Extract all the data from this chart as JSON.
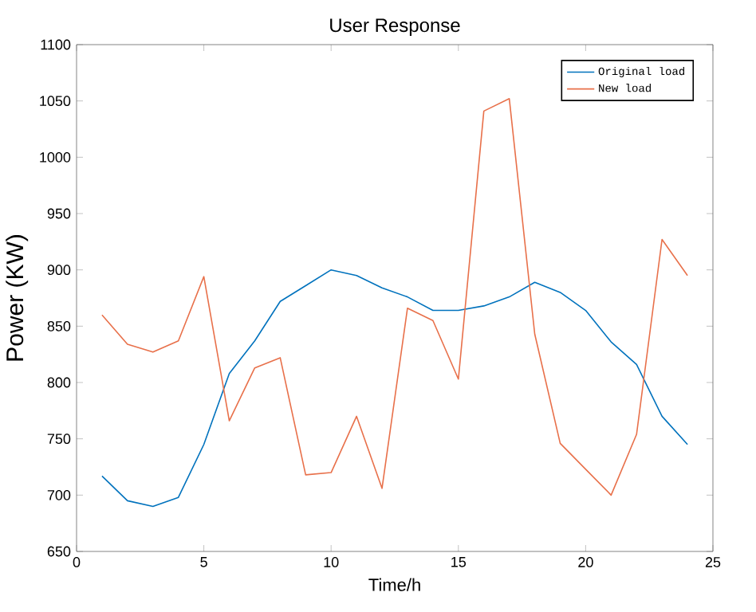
{
  "chart_data": {
    "type": "line",
    "title": "User Response",
    "xlabel": "Time/h",
    "ylabel": "Power (KW)",
    "x": [
      1,
      2,
      3,
      4,
      5,
      6,
      7,
      8,
      9,
      10,
      11,
      12,
      13,
      14,
      15,
      16,
      17,
      18,
      19,
      20,
      21,
      22,
      23,
      24
    ],
    "series": [
      {
        "name": "Original load",
        "color": "#0072bd",
        "values": [
          717,
          695,
          690,
          698,
          745,
          808,
          837,
          872,
          886,
          900,
          895,
          884,
          876,
          864,
          864,
          868,
          876,
          889,
          880,
          864,
          836,
          816,
          770,
          745
        ]
      },
      {
        "name": "New load",
        "color": "#e8704a",
        "values": [
          860,
          834,
          827,
          837,
          894,
          766,
          813,
          822,
          718,
          720,
          770,
          706,
          866,
          855,
          803,
          1041,
          1052,
          843,
          746,
          723,
          700,
          754,
          927,
          895
        ]
      }
    ],
    "xlim": [
      0,
      25
    ],
    "xticks": [
      0,
      5,
      10,
      15,
      20,
      25
    ],
    "ylim": [
      650,
      1100
    ],
    "yticks": [
      650,
      700,
      750,
      800,
      850,
      900,
      950,
      1000,
      1050,
      1100
    ],
    "legend": "top right",
    "grid": false,
    "marker": "none",
    "line_style": "solid"
  }
}
